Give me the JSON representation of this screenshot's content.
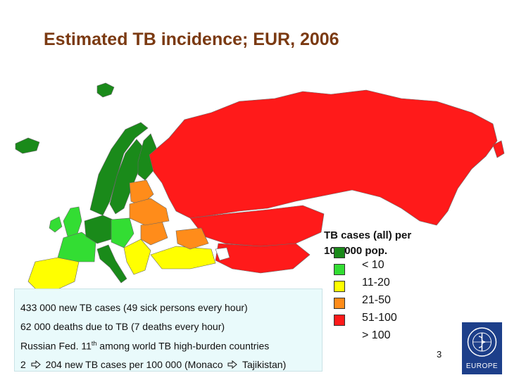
{
  "title": "Estimated TB incidence; EUR, 2006",
  "map": {
    "colors": {
      "lt10": "#1a8a1a",
      "10_20": "#33dd33",
      "21_50": "#ffff00",
      "51_100": "#ff8c1a",
      "gt100": "#ff1a1a",
      "no_data": "#ffffff"
    }
  },
  "legend": {
    "title_line1": "TB cases (all) per",
    "title_line2": "100,000 pop.",
    "items": [
      {
        "label": "< 10",
        "color": "#1a8a1a"
      },
      {
        "label": "11-20",
        "color": "#33dd33"
      },
      {
        "label": "21-50",
        "color": "#ffff00"
      },
      {
        "label": "51-100",
        "color": "#ff8c1a"
      },
      {
        "label": "> 100",
        "color": "#ff1a1a"
      }
    ]
  },
  "facts": {
    "line1": "433 000 new TB cases (49 sick persons every hour)",
    "line2": "62 000 deaths due to TB (7 deaths every hour)",
    "line3_pre": "Russian Fed. 11",
    "line3_sup": "th",
    "line3_post": " among world TB high-burden countries",
    "line4_a": "2",
    "line4_b": "204 new TB cases per 100 000 (Monaco",
    "line4_c": "Tajikistan)"
  },
  "page_number": "3",
  "logo": {
    "text": "EUROPE",
    "icon": "who-emblem-icon"
  }
}
